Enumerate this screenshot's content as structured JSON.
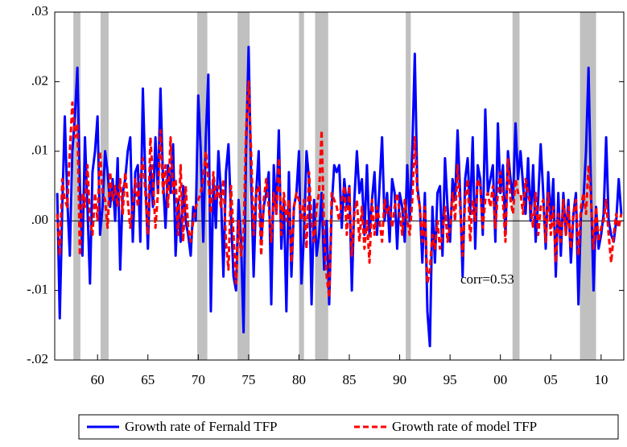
{
  "chart_data": {
    "type": "line",
    "annotation": "corr=0.53",
    "xlim": [
      1955.75,
      2012.25
    ],
    "xticks": [
      {
        "value": 1960,
        "label": "60"
      },
      {
        "value": 1965,
        "label": "65"
      },
      {
        "value": 1970,
        "label": "70"
      },
      {
        "value": 1975,
        "label": "75"
      },
      {
        "value": 1980,
        "label": "80"
      },
      {
        "value": 1985,
        "label": "85"
      },
      {
        "value": 1990,
        "label": "90"
      },
      {
        "value": 1995,
        "label": "95"
      },
      {
        "value": 2000,
        "label": "00"
      },
      {
        "value": 2005,
        "label": "05"
      },
      {
        "value": 2010,
        "label": "10"
      }
    ],
    "ylim": [
      -0.02,
      0.03
    ],
    "yticks": [
      {
        "value": -0.02,
        "label": "-.02"
      },
      {
        "value": -0.01,
        "label": "-.01"
      },
      {
        "value": 0,
        "label": ".00"
      },
      {
        "value": 0.01,
        "label": ".01"
      },
      {
        "value": 0.02,
        "label": ".02"
      },
      {
        "value": 0.03,
        "label": ".03"
      }
    ],
    "zero_line": true,
    "shade_color": "#c0c0c0",
    "recessions": [
      [
        1957.6,
        1958.3
      ],
      [
        1960.3,
        1961.1
      ],
      [
        1969.9,
        1970.9
      ],
      [
        1973.9,
        1975.1
      ],
      [
        1980.0,
        1980.5
      ],
      [
        1981.6,
        1982.9
      ],
      [
        1990.6,
        1991.1
      ],
      [
        2001.2,
        2001.9
      ],
      [
        2007.9,
        2009.5
      ]
    ],
    "legend": "bottom",
    "x": [
      1956,
      1956.25,
      1956.5,
      1956.75,
      1957,
      1957.25,
      1957.5,
      1957.75,
      1958,
      1958.25,
      1958.5,
      1958.75,
      1959,
      1959.25,
      1959.5,
      1959.75,
      1960,
      1960.25,
      1960.5,
      1960.75,
      1961,
      1961.25,
      1961.5,
      1961.75,
      1962,
      1962.25,
      1962.5,
      1962.75,
      1963,
      1963.25,
      1963.5,
      1963.75,
      1964,
      1964.25,
      1964.5,
      1964.75,
      1965,
      1965.25,
      1965.5,
      1965.75,
      1966,
      1966.25,
      1966.5,
      1966.75,
      1967,
      1967.25,
      1967.5,
      1967.75,
      1968,
      1968.25,
      1968.5,
      1968.75,
      1969,
      1969.25,
      1969.5,
      1969.75,
      1970,
      1970.25,
      1970.5,
      1970.75,
      1971,
      1971.25,
      1971.5,
      1971.75,
      1972,
      1972.25,
      1972.5,
      1972.75,
      1973,
      1973.25,
      1973.5,
      1973.75,
      1974,
      1974.25,
      1974.5,
      1974.75,
      1975,
      1975.25,
      1975.5,
      1975.75,
      1976,
      1976.25,
      1976.5,
      1976.75,
      1977,
      1977.25,
      1977.5,
      1977.75,
      1978,
      1978.25,
      1978.5,
      1978.75,
      1979,
      1979.25,
      1979.5,
      1979.75,
      1980,
      1980.25,
      1980.5,
      1980.75,
      1981,
      1981.25,
      1981.5,
      1981.75,
      1982,
      1982.25,
      1982.5,
      1982.75,
      1983,
      1983.25,
      1983.5,
      1983.75,
      1984,
      1984.25,
      1984.5,
      1984.75,
      1985,
      1985.25,
      1985.5,
      1985.75,
      1986,
      1986.25,
      1986.5,
      1986.75,
      1987,
      1987.25,
      1987.5,
      1987.75,
      1988,
      1988.25,
      1988.5,
      1988.75,
      1989,
      1989.25,
      1989.5,
      1989.75,
      1990,
      1990.25,
      1990.5,
      1990.75,
      1991,
      1991.25,
      1991.5,
      1991.75,
      1992,
      1992.25,
      1992.5,
      1992.75,
      1993,
      1993.25,
      1993.5,
      1993.75,
      1994,
      1994.25,
      1994.5,
      1994.75,
      1995,
      1995.25,
      1995.5,
      1995.75,
      1996,
      1996.25,
      1996.5,
      1996.75,
      1997,
      1997.25,
      1997.5,
      1997.75,
      1998,
      1998.25,
      1998.5,
      1998.75,
      1999,
      1999.25,
      1999.5,
      1999.75,
      2000,
      2000.25,
      2000.5,
      2000.75,
      2001,
      2001.25,
      2001.5,
      2001.75,
      2002,
      2002.25,
      2002.5,
      2002.75,
      2003,
      2003.25,
      2003.5,
      2003.75,
      2004,
      2004.25,
      2004.5,
      2004.75,
      2005,
      2005.25,
      2005.5,
      2005.75,
      2006,
      2006.25,
      2006.5,
      2006.75,
      2007,
      2007.25,
      2007.5,
      2007.75,
      2008,
      2008.25,
      2008.5,
      2008.75,
      2009,
      2009.25,
      2009.5,
      2009.75,
      2010,
      2010.25,
      2010.5,
      2010.75,
      2011,
      2011.25,
      2011.5,
      2011.75,
      2012
    ],
    "series": [
      {
        "name": "Growth rate of Fernald TFP",
        "color": "#0000ff",
        "style": "solid",
        "values": [
          0.004,
          -0.014,
          0.002,
          0.015,
          0.003,
          -0.005,
          0.01,
          0.015,
          0.022,
          0.005,
          -0.005,
          0.012,
          0.002,
          -0.009,
          0.007,
          0.01,
          0.015,
          -0.002,
          0.002,
          0.01,
          0.007,
          0.002,
          0.006,
          0.0,
          0.009,
          -0.007,
          0.004,
          0.006,
          0.01,
          0.012,
          -0.003,
          0.007,
          0.008,
          -0.003,
          0.019,
          0.006,
          -0.004,
          0.008,
          0.002,
          0.012,
          0.004,
          0.019,
          0.006,
          -0.001,
          0.008,
          0.004,
          0.011,
          -0.005,
          0.003,
          -0.003,
          0.005,
          0.0,
          -0.002,
          -0.005,
          0.002,
          0.0,
          0.018,
          0.01,
          -0.003,
          0.012,
          0.021,
          -0.013,
          0.006,
          -0.001,
          0.01,
          0.004,
          -0.008,
          0.007,
          0.011,
          0.001,
          -0.008,
          -0.01,
          0.003,
          -0.003,
          -0.016,
          0.01,
          0.025,
          0.006,
          -0.008,
          0.004,
          0.01,
          -0.003,
          0.002,
          0.004,
          0.007,
          -0.012,
          0.008,
          0.001,
          0.013,
          -0.004,
          0.003,
          -0.013,
          0.007,
          -0.008,
          0.002,
          0.004,
          0.01,
          -0.009,
          -0.002,
          0.01,
          0.006,
          -0.012,
          0.003,
          -0.005,
          -0.002,
          0.004,
          -0.007,
          0.0,
          -0.012,
          0.002,
          0.008,
          0.007,
          0.008,
          -0.001,
          0.006,
          0.002,
          0.005,
          -0.01,
          0.003,
          0.01,
          0.004,
          0.006,
          -0.002,
          0.008,
          -0.002,
          0.003,
          0.007,
          -0.002,
          0.005,
          0.012,
          0.0,
          0.004,
          -0.003,
          0.006,
          0.004,
          -0.004,
          0.004,
          0.002,
          -0.003,
          0.008,
          0.0,
          0.01,
          0.024,
          0.005,
          0.002,
          -0.006,
          0.004,
          -0.013,
          -0.018,
          0.002,
          -0.006,
          0.004,
          0.005,
          -0.005,
          0.009,
          0.002,
          -0.003,
          0.006,
          0.003,
          0.013,
          0.004,
          -0.008,
          0.006,
          0.009,
          0.001,
          0.012,
          -0.004,
          0.008,
          0.006,
          -0.002,
          0.016,
          0.004,
          0.006,
          0.008,
          -0.003,
          0.014,
          0.004,
          0.008,
          -0.002,
          0.01,
          0.006,
          0.003,
          0.014,
          0.006,
          0.01,
          0.005,
          0.001,
          0.009,
          0.0,
          0.008,
          -0.003,
          0.003,
          0.011,
          0.004,
          -0.004,
          0.007,
          0.0,
          0.006,
          -0.008,
          0.004,
          -0.005,
          0.004,
          -0.002,
          0.003,
          -0.006,
          0.001,
          0.004,
          -0.012,
          0.001,
          0.003,
          0.01,
          0.022,
          0.004,
          -0.01,
          0.002,
          -0.004,
          -0.002,
          0.001,
          0.012,
          0.0,
          -0.002,
          -0.003,
          0.0,
          0.006,
          0.001
        ]
      },
      {
        "name": "Growth rate of model TFP",
        "color": "#ff0000",
        "style": "dashed",
        "values": [
          0.001,
          -0.005,
          0.006,
          0.003,
          0.002,
          0.01,
          0.017,
          0.012,
          0.014,
          -0.005,
          0.004,
          0.002,
          0.008,
          0.0,
          -0.002,
          0.004,
          0.0,
          0.01,
          0.004,
          0.003,
          -0.001,
          0.007,
          0.003,
          0.005,
          0.002,
          0.006,
          0.001,
          0.007,
          0.003,
          -0.001,
          0.002,
          0.006,
          0.002,
          0.006,
          0.009,
          0.004,
          -0.002,
          0.012,
          0.006,
          -0.001,
          0.004,
          0.013,
          0.004,
          0.008,
          0.002,
          0.012,
          0.004,
          0.006,
          -0.002,
          0.008,
          -0.003,
          0.005,
          -0.001,
          -0.003,
          0.0,
          0.002,
          0.003,
          0.004,
          0.006,
          0.01,
          0.006,
          0.001,
          0.007,
          0.003,
          0.005,
          0.002,
          0.006,
          -0.003,
          -0.007,
          0.005,
          -0.002,
          -0.009,
          0.0,
          -0.005,
          -0.002,
          0.013,
          0.02,
          0.01,
          -0.002,
          0.004,
          0.005,
          -0.005,
          0.003,
          0.006,
          0.002,
          -0.003,
          0.004,
          0.001,
          0.009,
          -0.002,
          0.004,
          0.0,
          0.003,
          -0.006,
          0.002,
          0.004,
          0.003,
          0.0,
          0.003,
          -0.004,
          0.007,
          0.0,
          -0.003,
          0.002,
          0.004,
          0.013,
          -0.002,
          -0.008,
          -0.011,
          0.004,
          0.003,
          0.002,
          0.0,
          0.003,
          0.005,
          -0.002,
          0.005,
          -0.005,
          0.001,
          0.003,
          -0.003,
          0.002,
          -0.004,
          0.0,
          -0.006,
          0.003,
          -0.002,
          0.002,
          0.0,
          -0.003,
          0.003,
          0.001,
          0.002,
          -0.001,
          0.002,
          0.004,
          0.001,
          -0.002,
          0.003,
          0.0,
          -0.002,
          0.003,
          0.012,
          0.004,
          0.002,
          -0.003,
          0.002,
          -0.009,
          -0.007,
          -0.002,
          -0.004,
          0.0,
          -0.004,
          -0.002,
          0.002,
          -0.003,
          -0.001,
          0.004,
          0.0,
          0.008,
          0.002,
          -0.005,
          0.003,
          0.006,
          -0.003,
          0.003,
          0.0,
          0.006,
          0.005,
          -0.001,
          0.003,
          0.004,
          0.002,
          0.005,
          -0.001,
          0.004,
          0.007,
          0.003,
          -0.003,
          0.009,
          0.003,
          0.001,
          0.006,
          0.004,
          0.004,
          0.001,
          0.006,
          0.004,
          0.002,
          -0.001,
          0.004,
          -0.002,
          0.002,
          0.003,
          -0.003,
          0.004,
          -0.002,
          0.002,
          -0.006,
          0.001,
          -0.003,
          0.003,
          -0.002,
          0.002,
          -0.004,
          0.001,
          0.003,
          -0.005,
          0.002,
          0.004,
          0.001,
          0.008,
          0.003,
          -0.004,
          0.002,
          -0.003,
          -0.001,
          0.0,
          0.003,
          -0.002,
          -0.006,
          -0.002,
          0.001,
          -0.001,
          0.001
        ]
      }
    ]
  }
}
